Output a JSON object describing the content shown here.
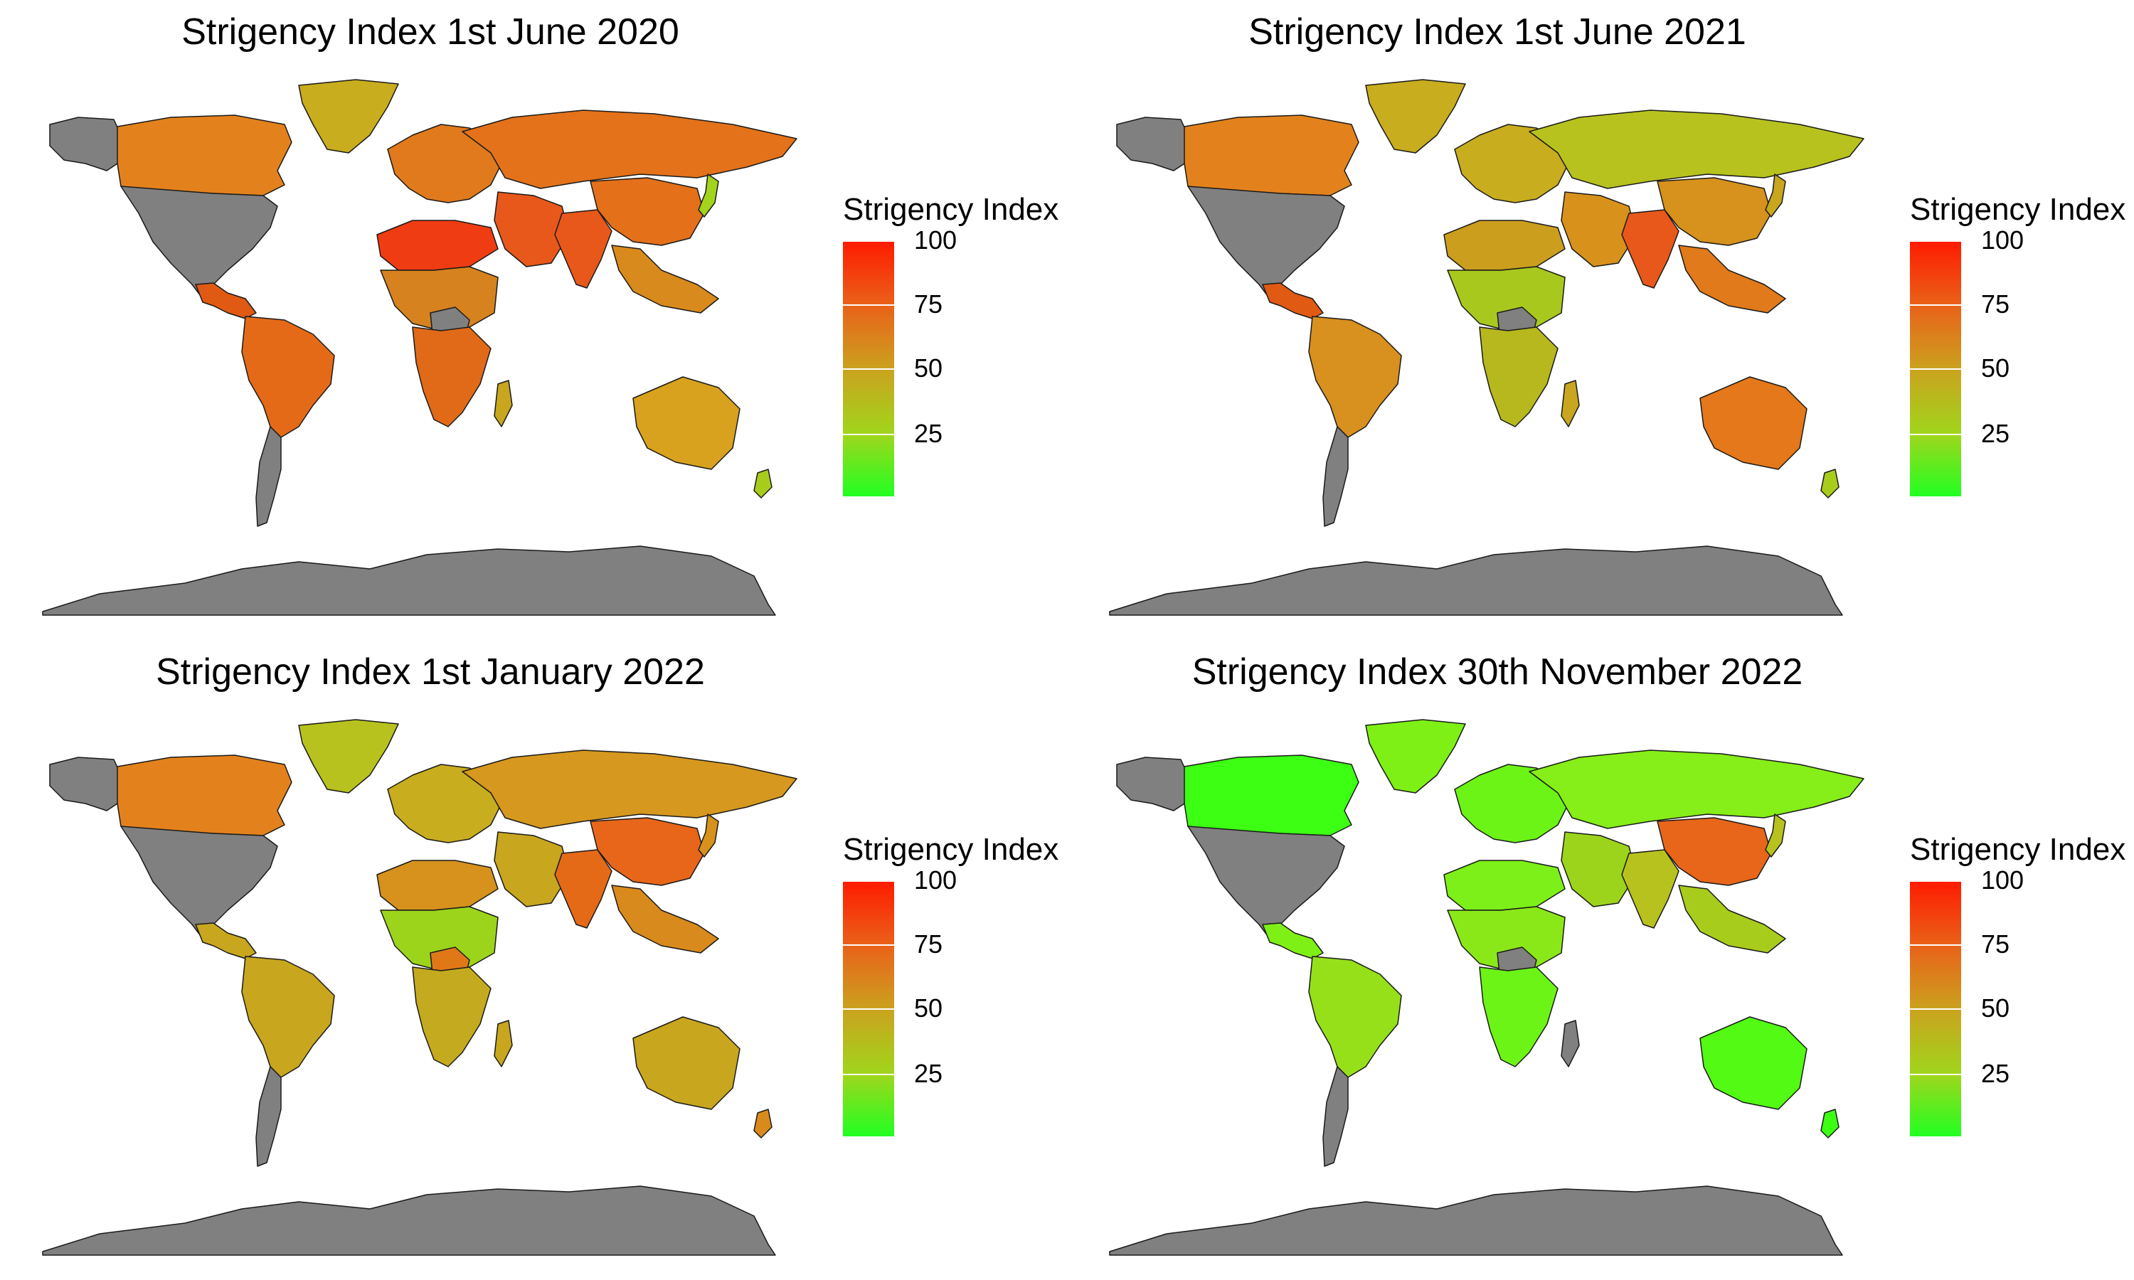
{
  "legend": {
    "title": "Strigency Index",
    "ticks": [
      "100",
      "75",
      "50",
      "25"
    ],
    "colors": {
      "high": "#ff1a00",
      "mid_high": "#e8661a",
      "mid": "#c8a61e",
      "mid_low": "#9fd61c",
      "low": "#22ff22",
      "no_data": "#808080"
    }
  },
  "panels": [
    {
      "title": "Strigency Index 1st June 2020",
      "fills": {
        "north_america": "#808080",
        "canada": "#e3821c",
        "alaska": "#808080",
        "greenland": "#c8ad1e",
        "central_america": "#e05a14",
        "south_america": "#e46a18",
        "south_cone": "#808080",
        "europe": "#e07a1c",
        "russia": "#e4721a",
        "middle_east": "#e8581a",
        "india": "#e8581a",
        "china": "#e4701a",
        "se_asia": "#d88a1c",
        "africa_north": "#f03c12",
        "africa_central": "#d6821e",
        "africa_south": "#e06a18",
        "drc": "#808080",
        "madagascar": "#c8a61e",
        "australia": "#d8a21e",
        "new_zealand": "#a8cc1c",
        "japan": "#a2d41c",
        "antarctica": "#808080"
      }
    },
    {
      "title": "Strigency Index 1st June 2021",
      "fills": {
        "north_america": "#808080",
        "canada": "#e3821c",
        "alaska": "#808080",
        "greenland": "#c8ad1e",
        "central_america": "#e05a14",
        "south_america": "#d8901e",
        "south_cone": "#808080",
        "europe": "#c8ad1e",
        "russia": "#b8c21e",
        "middle_east": "#d8921c",
        "india": "#e8581a",
        "china": "#d6921c",
        "se_asia": "#e07a1a",
        "africa_north": "#cc9e1e",
        "africa_central": "#a8c81e",
        "africa_south": "#b6b81e",
        "drc": "#808080",
        "madagascar": "#c8a61e",
        "australia": "#e4781a",
        "new_zealand": "#a8cc1c",
        "japan": "#c8a61e",
        "antarctica": "#808080"
      }
    },
    {
      "title": "Strigency Index 1st January 2022",
      "fills": {
        "north_america": "#808080",
        "canada": "#e3821c",
        "alaska": "#808080",
        "greenland": "#b8c21e",
        "central_america": "#c8a61e",
        "south_america": "#c8a61e",
        "south_cone": "#808080",
        "europe": "#c8ad1e",
        "russia": "#d6981e",
        "middle_east": "#c8a61e",
        "india": "#e46a18",
        "china": "#e8661a",
        "se_asia": "#d88a1c",
        "africa_north": "#d6921c",
        "africa_central": "#9cd41c",
        "africa_south": "#c4aa1e",
        "drc": "#e07818",
        "madagascar": "#c8a61e",
        "australia": "#c8a61e",
        "new_zealand": "#d88a1c",
        "japan": "#d6921c",
        "antarctica": "#808080"
      }
    },
    {
      "title": "Strigency Index 30th November 2022",
      "fills": {
        "north_america": "#808080",
        "canada": "#3cff14",
        "alaska": "#808080",
        "greenland": "#7ef016",
        "central_america": "#7ef016",
        "south_america": "#96e01a",
        "south_cone": "#808080",
        "europe": "#6cf416",
        "russia": "#86ee18",
        "middle_east": "#9cd41c",
        "india": "#b8c21e",
        "china": "#e8661a",
        "se_asia": "#a8cc1c",
        "africa_north": "#7cf018",
        "africa_central": "#8ae818",
        "africa_south": "#6cf416",
        "drc": "#808080",
        "madagascar": "#808080",
        "australia": "#52fa14",
        "new_zealand": "#3cff14",
        "japan": "#b8c21e",
        "antarctica": "#808080"
      }
    }
  ]
}
